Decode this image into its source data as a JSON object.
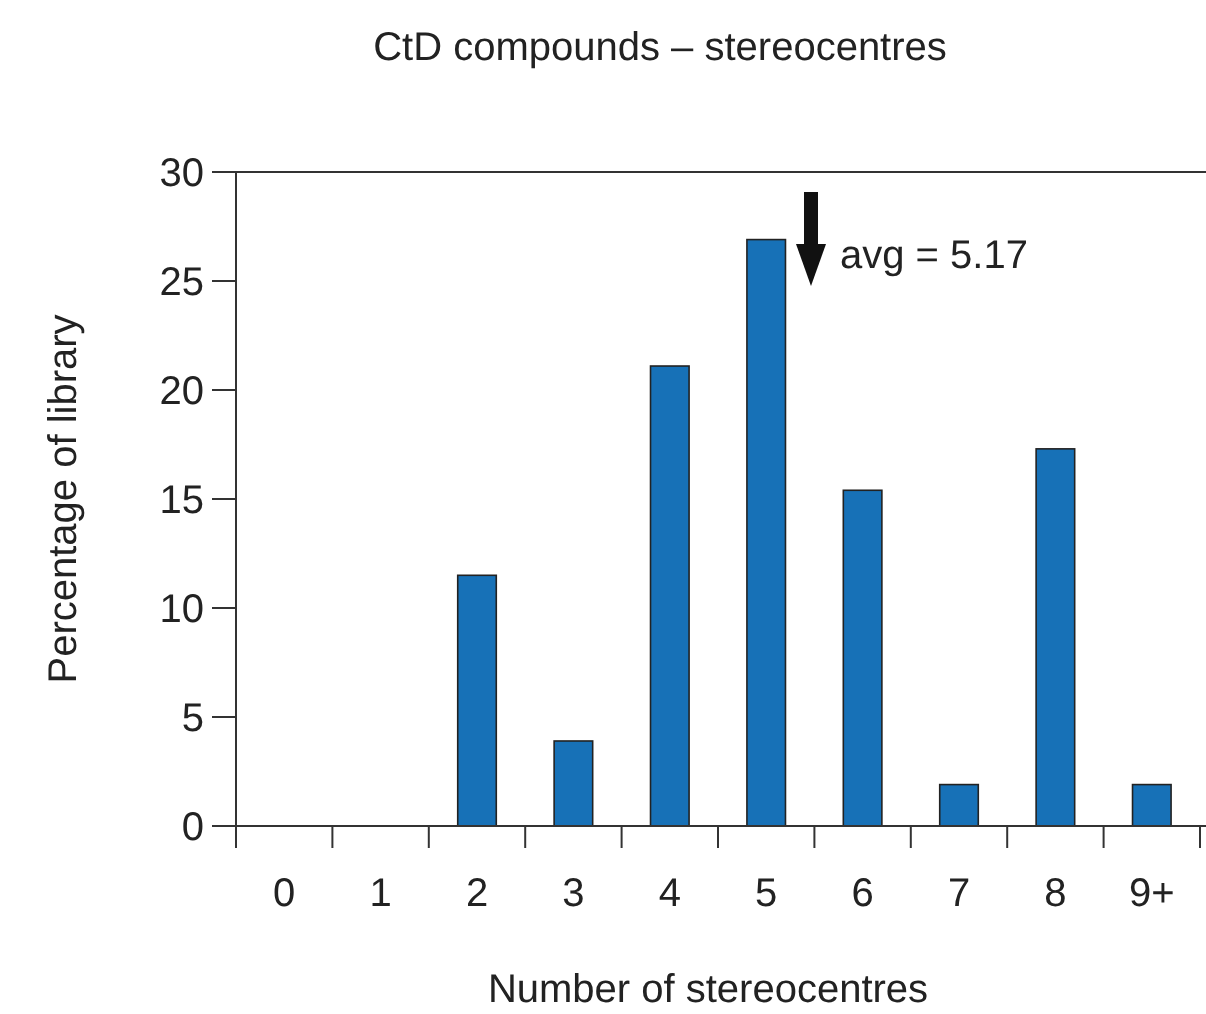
{
  "chart_data": {
    "type": "bar",
    "title": "CtD compounds – stereocentres",
    "xlabel": "Number of stereocentres",
    "ylabel": "Percentage of library",
    "categories": [
      "0",
      "1",
      "2",
      "3",
      "4",
      "5",
      "6",
      "7",
      "8",
      "9+"
    ],
    "values": [
      0,
      0,
      11.5,
      3.9,
      21.1,
      26.9,
      15.4,
      1.9,
      17.3,
      1.9
    ],
    "color": "#1771b7",
    "ylim": [
      0,
      30
    ],
    "yticks": [
      0,
      5,
      10,
      15,
      20,
      25,
      30
    ],
    "grid": false,
    "annotations": [
      "avg = 5.17"
    ]
  }
}
